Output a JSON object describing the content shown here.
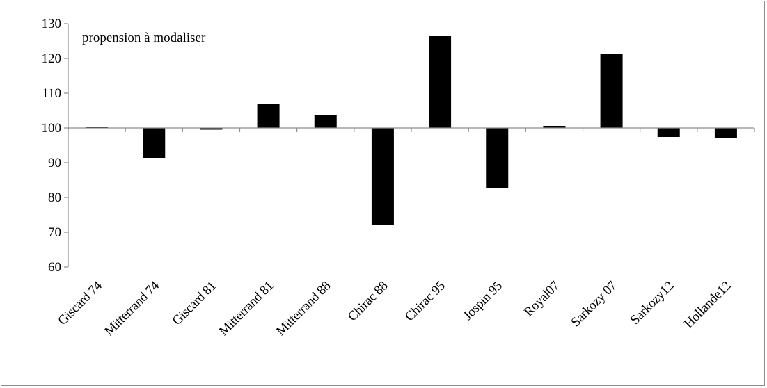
{
  "chart_data": {
    "type": "bar",
    "title": "",
    "xlabel": "",
    "ylabel": "",
    "annotation": "propension à modaliser",
    "baseline": 100,
    "ylim": [
      60,
      130
    ],
    "yticks": [
      60,
      70,
      80,
      90,
      100,
      110,
      120,
      130
    ],
    "grid": false,
    "legend": "none",
    "bar_color": "#000000",
    "categories": [
      "Giscard 74",
      "Mitterrand 74",
      "Giscard 81",
      "Mitterrand  81",
      "Mitterrand 88",
      "Chirac 88",
      "Chirac 95",
      "Jospin 95",
      "Royal07",
      "Sarkozy 07",
      "Sarkozy12",
      "Hollande12"
    ],
    "values": [
      100.2,
      91.4,
      99.5,
      106.8,
      103.6,
      72.1,
      126.4,
      82.6,
      100.6,
      121.4,
      97.4,
      97.1
    ]
  }
}
